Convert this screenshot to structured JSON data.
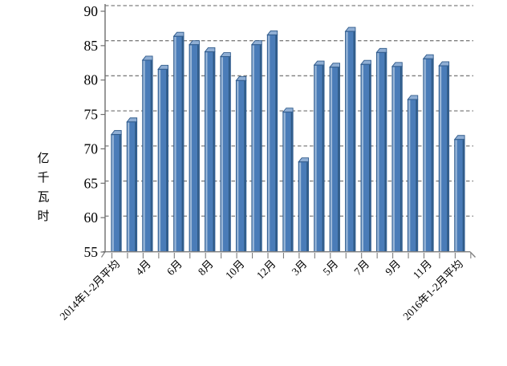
{
  "chart_data": {
    "type": "bar",
    "title": "",
    "xlabel": "",
    "ylabel": "亿千瓦时",
    "ylabel_chars": [
      "亿",
      "千",
      "瓦",
      "时"
    ],
    "ylim": [
      55,
      90
    ],
    "ytick_step": 5,
    "yticks": [
      90,
      85,
      80,
      75,
      70,
      65,
      60,
      55
    ],
    "grid": "dashed horizontal",
    "legend": "none",
    "style": "excel-3d-column",
    "categories": [
      "2014年1-2月平均",
      "",
      "4月",
      "",
      "6月",
      "",
      "8月",
      "",
      "10月",
      "",
      "12月",
      "",
      "3月",
      "",
      "5月",
      "",
      "7月",
      "",
      "9月",
      "",
      "11月",
      "",
      "2016年1-2月平均"
    ],
    "visible_x_tick_labels": [
      "2014年1-2月平均",
      "4月",
      "6月",
      "8月",
      "10月",
      "12月",
      "3月",
      "5月",
      "7月",
      "9月",
      "11月",
      "2016年1-2月平均"
    ],
    "values": [
      72.2,
      74.0,
      82.8,
      81.5,
      86.2,
      85.0,
      84.0,
      83.3,
      79.9,
      85.0,
      86.4,
      75.4,
      68.3,
      82.1,
      81.8,
      86.9,
      82.2,
      83.9,
      81.9,
      77.2,
      83.0,
      82.0,
      71.5
    ],
    "colors": {
      "bar_face": "#4A7CB8",
      "bar_left_highlight": "#9CB8D8",
      "bar_right_shade": "#2E5984",
      "bar_top_face": "#8FAED4",
      "bar_outline": "#2F5A8A",
      "gridline": "#7F7F7F",
      "axis": "#6E6E6E",
      "text": "#000000",
      "background": "#FFFFFF"
    }
  }
}
